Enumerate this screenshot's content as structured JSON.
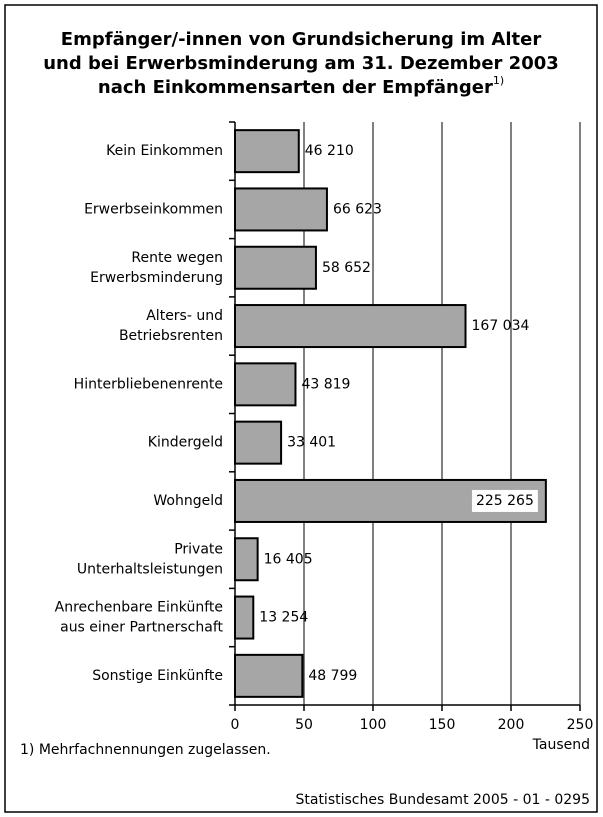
{
  "chart_data": {
    "type": "bar",
    "orientation": "horizontal",
    "title": [
      "Empfänger/-innen von Grundsicherung im Alter",
      "und bei Erwerbsminderung am 31. Dezember 2003",
      "nach Einkommensarten der Empfänger"
    ],
    "title_footnote_mark": "1)",
    "categories": [
      "Kein Einkommen",
      "Erwerbseinkommen",
      "Rente wegen\nErwerbsminderung",
      "Alters- und\nBetriebsrenten",
      "Hinterbliebenenrente",
      "Kindergeld",
      "Wohngeld",
      "Private\nUnterhaltsleistungen",
      "Anrechenbare Einkünfte\naus einer Partnerschaft",
      "Sonstige Einkünfte"
    ],
    "values": [
      46.21,
      66.623,
      58.652,
      167.034,
      43.819,
      33.401,
      225.265,
      16.405,
      13.254,
      48.799
    ],
    "value_labels": [
      "46 210",
      "66 623",
      "58 652",
      "167 034",
      "43 819",
      "33 401",
      "225 265",
      "16 405",
      "13 254",
      "48 799"
    ],
    "color": "#a6a6a6",
    "xlim": [
      0,
      250
    ],
    "xticks": [
      0,
      50,
      100,
      150,
      200,
      250
    ],
    "grid": true,
    "x_label": "Tausend",
    "footnote": "1) Mehrfachnennungen zugelassen.",
    "source": "Statistisches Bundesamt 2005 - 01 - 0295"
  }
}
